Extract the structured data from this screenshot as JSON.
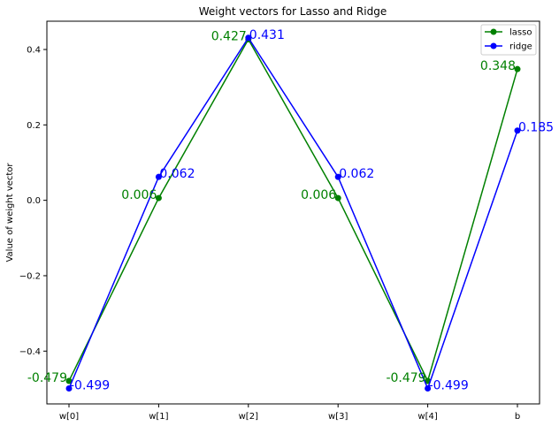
{
  "chart_data": {
    "type": "line",
    "title": "Weight vectors for Lasso and Ridge",
    "xlabel": "",
    "ylabel": "Value of weight vector",
    "categories": [
      "w[0]",
      "w[1]",
      "w[2]",
      "w[3]",
      "w[4]",
      "b"
    ],
    "y_ticks": [
      -0.4,
      -0.2,
      0.0,
      0.2,
      0.4
    ],
    "y_tick_labels": [
      "−0.4",
      "−0.2",
      "0.0",
      "0.2",
      "0.4"
    ],
    "ylim": [
      -0.54,
      0.475
    ],
    "grid": false,
    "legend_position": "top-right",
    "series": [
      {
        "name": "lasso",
        "color": "#008000",
        "marker": "circle",
        "values": [
          -0.479,
          0.006,
          0.427,
          0.006,
          -0.479,
          0.348
        ],
        "labels": [
          "-0.479",
          "0.006",
          "0.427",
          "0.006",
          "-0.479",
          "0.348"
        ]
      },
      {
        "name": "ridge",
        "color": "#0000ff",
        "marker": "circle",
        "values": [
          -0.499,
          0.062,
          0.431,
          0.062,
          -0.499,
          0.185
        ],
        "labels": [
          "-0.499",
          "0.062",
          "0.431",
          "0.062",
          "-0.499",
          "0.185"
        ]
      }
    ]
  }
}
